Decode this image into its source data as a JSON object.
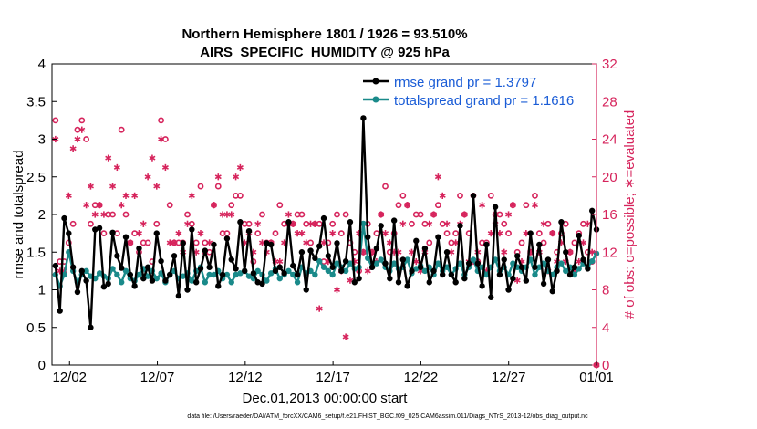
{
  "chart_data": {
    "type": "line",
    "title_line1": "Northern Hemisphere 1801 / 1926 = 93.510%",
    "title_line2": "AIRS_SPECIFIC_HUMIDITY @ 925 hPa",
    "xlabel": "Dec.01,2013 00:00:00 start",
    "ylabel_left": "rmse and totalspread",
    "ylabel_right": "# of obs: o=possible; ∗=evaluated",
    "xlim": [
      0,
      31
    ],
    "ylim_left": [
      0,
      4
    ],
    "ylim_right": [
      0,
      32
    ],
    "x_ticks": [
      {
        "v": 1,
        "label": "12/02"
      },
      {
        "v": 6,
        "label": "12/07"
      },
      {
        "v": 11,
        "label": "12/12"
      },
      {
        "v": 16,
        "label": "12/17"
      },
      {
        "v": 21,
        "label": "12/22"
      },
      {
        "v": 26,
        "label": "12/27"
      },
      {
        "v": 31,
        "label": "01/01"
      }
    ],
    "y_ticks_left": [
      "0",
      "0.5",
      "1",
      "1.5",
      "2",
      "2.5",
      "3",
      "3.5",
      "4"
    ],
    "y_ticks_right": [
      "0",
      "4",
      "8",
      "12",
      "16",
      "20",
      "24",
      "28",
      "32"
    ],
    "colors": {
      "rmse": "#000000",
      "spread": "#1a8a8a",
      "obs": "#d6245c",
      "legend_text": "#1a5cd6"
    },
    "legend": {
      "rmse": "rmse grand pr = 1.3797",
      "spread": "totalspread grand pr = 1.1616"
    },
    "series": [
      {
        "name": "rmse",
        "values": [
          1.32,
          0.72,
          1.95,
          1.75,
          1.3,
          0.97,
          1.25,
          1.12,
          0.5,
          1.8,
          1.82,
          1.04,
          1.08,
          1.76,
          1.45,
          1.29,
          1.7,
          1.2,
          1.05,
          1.55,
          1.15,
          1.3,
          1.12,
          1.75,
          1.38,
          1.12,
          1.2,
          1.45,
          0.92,
          1.62,
          1.0,
          1.8,
          1.1,
          1.28,
          1.52,
          1.3,
          1.6,
          1.05,
          1.2,
          1.68,
          1.4,
          1.28,
          1.9,
          1.25,
          1.78,
          1.22,
          1.1,
          1.08,
          1.62,
          1.6,
          1.25,
          1.3,
          1.22,
          1.9,
          1.32,
          1.2,
          1.5,
          1.0,
          1.52,
          1.42,
          1.58,
          1.95,
          1.45,
          1.3,
          1.62,
          1.25,
          1.38,
          1.9,
          1.1,
          1.15,
          3.28,
          1.7,
          1.3,
          1.55,
          1.85,
          1.35,
          1.15,
          1.92,
          1.1,
          1.4,
          1.05,
          1.25,
          1.65,
          1.3,
          1.55,
          1.1,
          1.25,
          1.7,
          1.2,
          1.5,
          1.2,
          1.1,
          1.85,
          1.15,
          1.35,
          2.25,
          1.35,
          1.05,
          1.6,
          0.9,
          2.1,
          1.2,
          1.4,
          1.0,
          1.15,
          1.45,
          1.3,
          1.12,
          1.75,
          1.3,
          1.6,
          1.08,
          1.4,
          0.98,
          1.25,
          1.9,
          1.5,
          1.2,
          1.3,
          1.72,
          1.4,
          1.28,
          2.05,
          1.8
        ]
      },
      {
        "name": "totalspread",
        "values": [
          1.2,
          1.05,
          1.2,
          1.5,
          1.25,
          1.1,
          1.2,
          1.25,
          1.18,
          1.15,
          1.22,
          1.18,
          1.15,
          1.28,
          1.2,
          1.1,
          1.25,
          1.15,
          1.12,
          1.2,
          1.28,
          1.18,
          1.25,
          1.15,
          1.22,
          1.1,
          1.2,
          1.25,
          1.15,
          1.18,
          1.22,
          1.12,
          1.25,
          1.3,
          1.1,
          1.2,
          1.2,
          1.25,
          1.15,
          1.2,
          1.1,
          1.2,
          1.22,
          1.25,
          1.18,
          1.15,
          1.25,
          1.2,
          1.12,
          1.22,
          1.28,
          1.15,
          1.2,
          1.25,
          1.2,
          1.1,
          1.3,
          1.22,
          1.25,
          1.2,
          1.38,
          1.3,
          1.25,
          1.2,
          1.35,
          1.3,
          1.25,
          1.35,
          1.28,
          1.3,
          1.88,
          1.42,
          1.3,
          1.35,
          1.4,
          1.3,
          1.25,
          1.35,
          1.28,
          1.3,
          1.4,
          1.22,
          1.28,
          1.32,
          1.25,
          1.3,
          1.2,
          1.35,
          1.25,
          1.3,
          1.2,
          1.28,
          1.35,
          1.2,
          1.3,
          1.4,
          1.25,
          1.3,
          1.2,
          1.3,
          1.4,
          1.25,
          1.3,
          1.2,
          1.35,
          1.3,
          1.25,
          1.3,
          1.4,
          1.2,
          1.3,
          1.35,
          1.25,
          1.2,
          1.3,
          1.35,
          1.25,
          1.3,
          1.2,
          1.28,
          1.35,
          1.3,
          1.38,
          1.48
        ]
      },
      {
        "name": "obs_possible",
        "values": [
          26,
          11,
          11,
          13,
          15,
          25,
          26,
          24,
          15,
          17,
          17,
          14,
          16,
          16,
          14,
          25,
          16,
          13,
          14,
          12,
          13,
          13,
          11,
          15,
          26,
          24,
          17,
          13,
          13,
          13,
          16,
          15,
          13,
          19,
          13,
          12,
          17,
          19,
          14,
          14,
          17,
          18,
          18,
          15,
          15,
          11,
          14,
          16,
          13,
          13,
          14,
          17,
          15,
          15,
          15,
          16,
          16,
          15,
          13,
          15,
          15,
          11,
          13,
          15,
          16,
          14,
          16,
          13,
          12,
          10,
          12,
          15,
          12,
          14,
          16,
          19,
          12,
          14,
          17,
          18,
          17,
          15,
          16,
          16,
          15,
          13,
          16,
          17,
          15,
          14,
          13,
          14,
          18,
          16,
          14,
          18,
          11,
          13,
          13,
          18,
          16,
          16,
          15,
          14,
          17,
          12,
          13,
          17,
          12,
          18,
          14,
          13,
          15,
          14,
          12,
          14,
          15,
          12,
          13,
          14,
          15,
          12,
          11,
          0
        ]
      },
      {
        "name": "obs_evaluated",
        "values": [
          24,
          10,
          10,
          18,
          23,
          24,
          25,
          17,
          19,
          16,
          17,
          16,
          22,
          19,
          21,
          17,
          18,
          13,
          18,
          14,
          15,
          20,
          22,
          19,
          24,
          21,
          13,
          13,
          14,
          12,
          15,
          18,
          12,
          14,
          12,
          13,
          17,
          20,
          16,
          16,
          16,
          20,
          21,
          13,
          14,
          12,
          15,
          13,
          12,
          13,
          11,
          11,
          13,
          16,
          15,
          14,
          14,
          13,
          15,
          15,
          6,
          13,
          11,
          14,
          8,
          10,
          3,
          9,
          11,
          14,
          12,
          10,
          12,
          11,
          16,
          14,
          13,
          12,
          12,
          15,
          17,
          12,
          11,
          10,
          12,
          15,
          16,
          20,
          18,
          15,
          12,
          13,
          15,
          16,
          11,
          11,
          12,
          17,
          10,
          14,
          15,
          14,
          12,
          16,
          17,
          9,
          11,
          14,
          12,
          17,
          12,
          15,
          10,
          14,
          11,
          13,
          11,
          12,
          10,
          11,
          13,
          15,
          12,
          0
        ]
      }
    ]
  },
  "footer": {
    "source": "data file: /Users/raeder/DAI/ATM_forcXX/CAM6_setup/f.e21.FHIST_BGC.f09_025.CAM6assim.011/Diags_NTrS_2013-12/obs_diag_output.nc"
  }
}
